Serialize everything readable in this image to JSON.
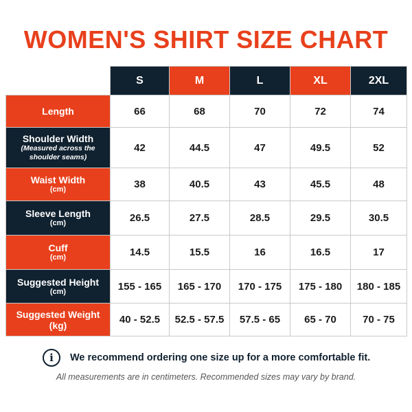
{
  "title": "WOMEN'S SHIRT SIZE CHART",
  "colors": {
    "accent": "#e8401c",
    "dark": "#10212f"
  },
  "sizes": [
    "S",
    "M",
    "L",
    "XL",
    "2XL"
  ],
  "rows": [
    {
      "label": "Length",
      "sub": "",
      "values": [
        "66",
        "68",
        "70",
        "72",
        "74"
      ]
    },
    {
      "label": "Shoulder Width",
      "sub": "(Measured across the shoulder seams)",
      "values": [
        "42",
        "44.5",
        "47",
        "49.5",
        "52"
      ]
    },
    {
      "label": "Waist Width",
      "sub": "(cm)",
      "values": [
        "38",
        "40.5",
        "43",
        "45.5",
        "48"
      ]
    },
    {
      "label": "Sleeve Length",
      "sub": "(cm)",
      "values": [
        "26.5",
        "27.5",
        "28.5",
        "29.5",
        "30.5"
      ]
    },
    {
      "label": "Cuff",
      "sub": "(cm)",
      "values": [
        "14.5",
        "15.5",
        "16",
        "16.5",
        "17"
      ]
    },
    {
      "label": "Suggested Height",
      "sub": "(cm)",
      "values": [
        "155 - 165",
        "165 - 170",
        "170 - 175",
        "175 - 180",
        "180 - 185"
      ]
    },
    {
      "label": "Suggested Weight (kg)",
      "sub": "",
      "values": [
        "40 - 52.5",
        "52.5 - 57.5",
        "57.5 - 65",
        "65 - 70",
        "70 - 75"
      ]
    }
  ],
  "note": {
    "icon": "info-icon",
    "text": "We recommend ordering one size up for a more comfortable fit."
  },
  "footnote": "All measurements are in centimeters. Recommended sizes may vary by brand."
}
